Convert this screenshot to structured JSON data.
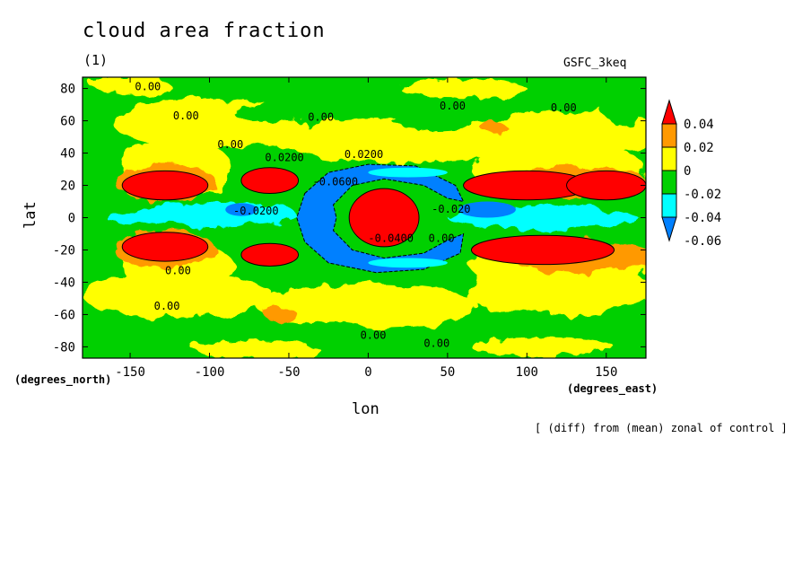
{
  "header": {
    "title": "cloud area fraction",
    "panel": "(1)",
    "model": "GSFC_3keq"
  },
  "footer": {
    "note": "[ (diff) from (mean) zonal of control ]"
  },
  "colors": {
    "red": "#ff0000",
    "orange": "#ff9900",
    "yellow": "#ffff00",
    "green": "#00d000",
    "cyan": "#00ffff",
    "blue": "#0080ff"
  },
  "chart_data": {
    "type": "heatmap",
    "title": "cloud area fraction",
    "xlabel": "lon",
    "ylabel": "lat",
    "xunits": "(degrees_east)",
    "yunits": "(degrees_north)",
    "xlim": [
      -180,
      175
    ],
    "ylim": [
      -87,
      87
    ],
    "xticks": [
      -150,
      -100,
      -50,
      0,
      50,
      100,
      150
    ],
    "yticks": [
      -80,
      -60,
      -40,
      -20,
      0,
      20,
      40,
      60,
      80
    ],
    "legend": {
      "position": "right",
      "labels": [
        "0.04",
        "0.02",
        "0",
        "-0.02",
        "-0.04",
        "-0.06"
      ],
      "colors": [
        "#ff0000",
        "#ff9900",
        "#ffff00",
        "#00d000",
        "#00ffff",
        "#0080ff"
      ]
    },
    "contour_labels": [
      {
        "text": "0.00",
        "lon": -147,
        "lat": 79
      },
      {
        "text": "0.00",
        "lon": -123,
        "lat": 61
      },
      {
        "text": "0.00",
        "lon": -95,
        "lat": 43
      },
      {
        "text": "0.0200",
        "lon": -65,
        "lat": 35
      },
      {
        "text": "0.00",
        "lon": -38,
        "lat": 60
      },
      {
        "text": "0.0200",
        "lon": -15,
        "lat": 37
      },
      {
        "text": "-0.0600",
        "lon": -35,
        "lat": 20
      },
      {
        "text": "-0.0200",
        "lon": -85,
        "lat": 2
      },
      {
        "text": "0.00",
        "lon": 45,
        "lat": 67
      },
      {
        "text": "0.00",
        "lon": 115,
        "lat": 66
      },
      {
        "text": "-0.020",
        "lon": 40,
        "lat": 3
      },
      {
        "text": "-0.0400",
        "lon": 0,
        "lat": -15
      },
      {
        "text": "0.00",
        "lon": 38,
        "lat": -15
      },
      {
        "text": "0.00",
        "lon": -128,
        "lat": -35
      },
      {
        "text": "0.00",
        "lon": -135,
        "lat": -57
      },
      {
        "text": "0.00",
        "lon": -5,
        "lat": -75
      },
      {
        "text": "0.00",
        "lon": 35,
        "lat": -80
      }
    ],
    "regions": [
      {
        "level": "0.04",
        "lon": -128,
        "lat": 20,
        "rlon": 27,
        "rlat": 9
      },
      {
        "level": "0.04",
        "lon": -62,
        "lat": 23,
        "rlon": 18,
        "rlat": 8
      },
      {
        "level": "0.04",
        "lon": -128,
        "lat": -18,
        "rlon": 27,
        "rlat": 9
      },
      {
        "level": "0.04",
        "lon": -62,
        "lat": -23,
        "rlon": 18,
        "rlat": 7
      },
      {
        "level": "0.04",
        "lon": 100,
        "lat": 20,
        "rlon": 40,
        "rlat": 9
      },
      {
        "level": "0.04",
        "lon": 150,
        "lat": 20,
        "rlon": 25,
        "rlat": 9
      },
      {
        "level": "0.04",
        "lon": 110,
        "lat": -20,
        "rlon": 45,
        "rlat": 9
      },
      {
        "level": "0.04",
        "lon": 10,
        "lat": 0,
        "rlon": 22,
        "rlat": 18
      }
    ]
  }
}
